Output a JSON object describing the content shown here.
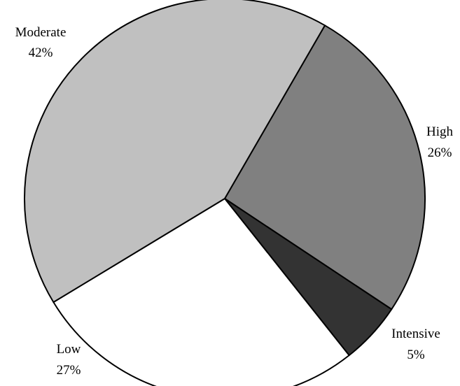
{
  "chart_data": {
    "type": "pie",
    "title": "",
    "slices": [
      {
        "label": "Moderate",
        "value": 42,
        "value_label": "42%",
        "color": "#c0c0c0"
      },
      {
        "label": "High",
        "value": 26,
        "value_label": "26%",
        "color": "#808080"
      },
      {
        "label": "Intensive",
        "value": 5,
        "value_label": "5%",
        "color": "#333333"
      },
      {
        "label": "Low",
        "value": 27,
        "value_label": "27%",
        "color": "#ffffff"
      }
    ],
    "legend": "none",
    "labels": "outside"
  }
}
